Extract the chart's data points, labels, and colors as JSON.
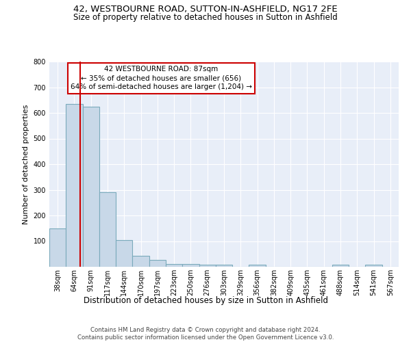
{
  "title_line1": "42, WESTBOURNE ROAD, SUTTON-IN-ASHFIELD, NG17 2FE",
  "title_line2": "Size of property relative to detached houses in Sutton in Ashfield",
  "xlabel": "Distribution of detached houses by size in Sutton in Ashfield",
  "ylabel": "Number of detached properties",
  "footnote": "Contains HM Land Registry data © Crown copyright and database right 2024.\nContains public sector information licensed under the Open Government Licence v3.0.",
  "bin_labels": [
    "38sqm",
    "64sqm",
    "91sqm",
    "117sqm",
    "144sqm",
    "170sqm",
    "197sqm",
    "223sqm",
    "250sqm",
    "276sqm",
    "303sqm",
    "329sqm",
    "356sqm",
    "382sqm",
    "409sqm",
    "435sqm",
    "461sqm",
    "488sqm",
    "514sqm",
    "541sqm",
    "567sqm"
  ],
  "bar_heights": [
    150,
    635,
    625,
    290,
    103,
    42,
    28,
    11,
    11,
    9,
    9,
    0,
    7,
    0,
    0,
    0,
    0,
    8,
    0,
    8,
    0
  ],
  "bar_color": "#c8d8e8",
  "bar_edgecolor": "#7aaabb",
  "bar_linewidth": 0.8,
  "vline_color": "#cc0000",
  "vline_position": 1.85,
  "annotation_text": "42 WESTBOURNE ROAD: 87sqm\n← 35% of detached houses are smaller (656)\n64% of semi-detached houses are larger (1,204) →",
  "annotation_box_edgecolor": "#cc0000",
  "annotation_box_facecolor": "white",
  "ylim": [
    0,
    800
  ],
  "yticks": [
    0,
    100,
    200,
    300,
    400,
    500,
    600,
    700,
    800
  ],
  "background_color": "#e8eef8",
  "grid_color": "white",
  "title1_fontsize": 9.5,
  "title2_fontsize": 8.5,
  "xlabel_fontsize": 8.5,
  "ylabel_fontsize": 8,
  "tick_fontsize": 7,
  "annotation_fontsize": 7.5,
  "footnote_fontsize": 6.2
}
